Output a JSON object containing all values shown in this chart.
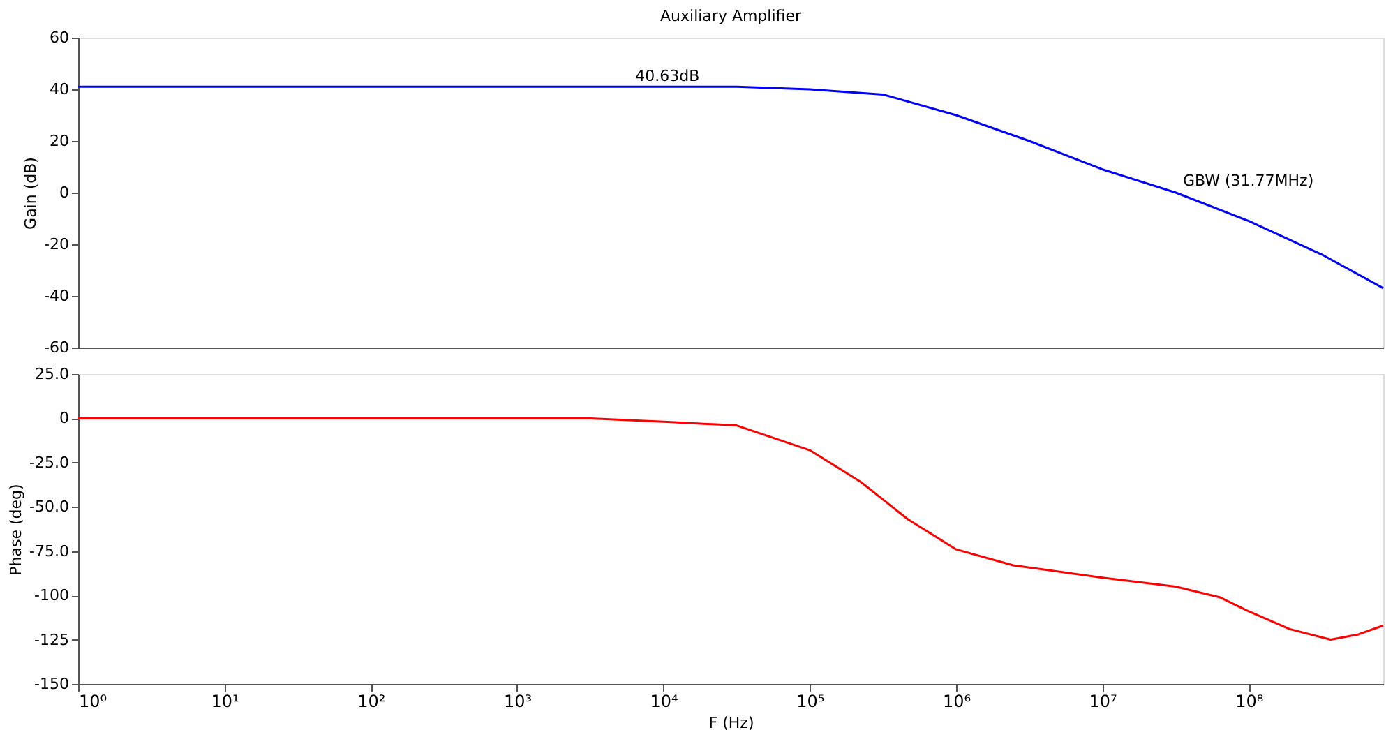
{
  "chart_data": [
    {
      "type": "line",
      "title": "Auxiliary Amplifier",
      "ylabel": "Gain (dB)",
      "tick_labels": "y",
      "grid": false,
      "xlim": [
        1,
        830000000
      ],
      "log": "x",
      "ylim": [
        -60,
        60
      ],
      "yticks": [
        60,
        40,
        20,
        0,
        -20,
        -40,
        -60
      ],
      "series": [
        {
          "color": "#0000ff",
          "x": [
            1,
            10000,
            31623,
            100000,
            316228,
            1000000,
            3162278,
            10000000,
            31770000,
            100000000,
            316227766,
            830000000
          ],
          "values": [
            41,
            41,
            41,
            40,
            38,
            30,
            20,
            9,
            0,
            -11,
            -24,
            -37
          ]
        }
      ],
      "annotations": [
        {
          "text": "40.63dB",
          "x": 5750,
          "y": 40.63
        },
        {
          "text": "GBW (31.77MHz)",
          "x": 31770000,
          "y": 0
        }
      ]
    },
    {
      "type": "line",
      "xlabel": "F (Hz)",
      "ylabel": "Phase (deg)",
      "grid": false,
      "log": "x",
      "xlim": [
        1,
        830000000
      ],
      "xticks": [
        {
          "value": 1,
          "label": "10⁰"
        },
        {
          "value": 10,
          "label": "10¹"
        },
        {
          "value": 100,
          "label": "10²"
        },
        {
          "value": 1000,
          "label": "10³"
        },
        {
          "value": 10000,
          "label": "10⁴"
        },
        {
          "value": 100000,
          "label": "10⁵"
        },
        {
          "value": 1000000,
          "label": "10⁶"
        },
        {
          "value": 10000000,
          "label": "10⁷"
        },
        {
          "value": 100000000,
          "label": "10⁸"
        }
      ],
      "ylim": [
        -150,
        25
      ],
      "yticks": [
        {
          "value": 25,
          "label": "25.0"
        },
        0,
        {
          "value": -25,
          "label": "-25.0"
        },
        {
          "value": -50,
          "label": "-50.0"
        },
        {
          "value": -75,
          "label": "-75.0"
        },
        -100,
        -125,
        -150
      ],
      "series": [
        {
          "color": "#ff0000",
          "x": [
            1,
            100,
            3162,
            10700,
            31623,
            100000,
            223872,
            467735,
            1000000,
            2454709,
            10000000,
            31622777,
            63095734,
            100000000,
            190546072,
            363078055,
            562341325,
            830000000
          ],
          "values": [
            0,
            0,
            0,
            -2,
            -4,
            -18,
            -36,
            -57,
            -74,
            -83,
            -90,
            -95,
            -101,
            -109,
            -119,
            -125,
            -122,
            -117
          ]
        }
      ]
    }
  ]
}
